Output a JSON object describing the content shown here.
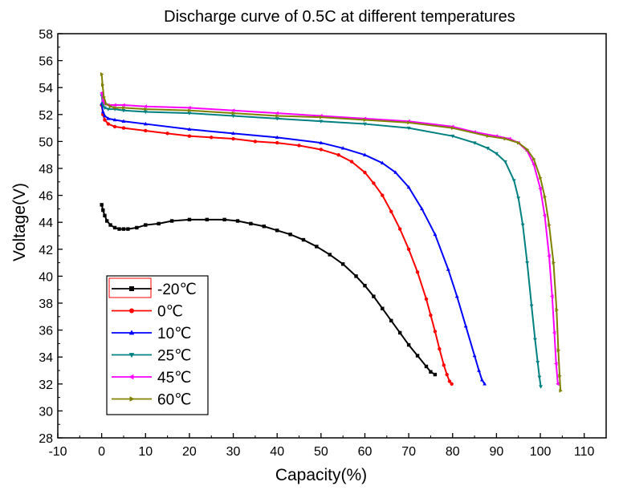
{
  "chart_data": {
    "type": "line",
    "title": "Discharge curve of 0.5C at different temperatures",
    "xlabel": "Capacity(%)",
    "ylabel": "Voltage(V)",
    "xlim": [
      -10,
      115
    ],
    "ylim": [
      28,
      58
    ],
    "xticks": [
      -10,
      0,
      10,
      20,
      30,
      40,
      50,
      60,
      70,
      80,
      90,
      100,
      110
    ],
    "yticks": [
      28,
      30,
      32,
      34,
      36,
      38,
      40,
      42,
      44,
      46,
      48,
      50,
      52,
      54,
      56,
      58
    ],
    "grid": false,
    "legend_position": "bottom-left",
    "series": [
      {
        "name": "-20℃",
        "color": "#000000",
        "marker": "square",
        "x": [
          0,
          0.3,
          0.7,
          1.2,
          2,
          3,
          4,
          5,
          6,
          8,
          10,
          13,
          16,
          20,
          24,
          28,
          31,
          34,
          37,
          40,
          43,
          46,
          49,
          52,
          55,
          58,
          60,
          62,
          64,
          66,
          68,
          70,
          72,
          74,
          75,
          76
        ],
        "y": [
          45.3,
          44.9,
          44.5,
          44.1,
          43.8,
          43.6,
          43.5,
          43.5,
          43.5,
          43.6,
          43.8,
          43.9,
          44.1,
          44.2,
          44.2,
          44.2,
          44.1,
          43.9,
          43.7,
          43.4,
          43.1,
          42.7,
          42.2,
          41.6,
          40.9,
          40.0,
          39.3,
          38.5,
          37.6,
          36.7,
          35.8,
          34.9,
          34.1,
          33.3,
          32.9,
          32.7
        ]
      },
      {
        "name": "0℃",
        "color": "#ff0000",
        "marker": "circle",
        "x": [
          0,
          0.3,
          0.7,
          1.5,
          3,
          5,
          10,
          15,
          20,
          25,
          30,
          35,
          40,
          45,
          50,
          54,
          57,
          60,
          62,
          64,
          66,
          68,
          70,
          72,
          74,
          75,
          76,
          77,
          78,
          78.7,
          79.3,
          79.8
        ],
        "y": [
          52.7,
          52.0,
          51.6,
          51.3,
          51.1,
          51.0,
          50.8,
          50.6,
          50.4,
          50.3,
          50.2,
          50.0,
          49.9,
          49.7,
          49.4,
          49.0,
          48.5,
          47.7,
          46.9,
          46.0,
          44.8,
          43.5,
          42.0,
          40.3,
          38.3,
          37.1,
          35.9,
          34.6,
          33.4,
          32.7,
          32.2,
          32.0
        ]
      },
      {
        "name": "10℃",
        "color": "#0000ff",
        "marker": "triangle-up",
        "x": [
          0,
          0.3,
          0.7,
          1.5,
          3,
          5,
          10,
          20,
          30,
          40,
          50,
          55,
          60,
          64,
          67,
          70,
          73,
          76,
          79,
          81,
          83,
          85,
          86,
          86.7,
          87.3
        ],
        "y": [
          52.8,
          52.2,
          51.9,
          51.7,
          51.6,
          51.5,
          51.3,
          50.9,
          50.6,
          50.3,
          49.9,
          49.5,
          49.0,
          48.4,
          47.7,
          46.6,
          45.0,
          43.1,
          40.5,
          38.5,
          36.3,
          34.1,
          33.0,
          32.3,
          32.0
        ]
      },
      {
        "name": "25℃",
        "color": "#008080",
        "marker": "triangle-down",
        "x": [
          0,
          0.3,
          0.7,
          1.5,
          3,
          5,
          10,
          20,
          30,
          40,
          50,
          60,
          70,
          80,
          85,
          88,
          90,
          92,
          94,
          95,
          96,
          97,
          98,
          98.8,
          99.4,
          99.8,
          100.1
        ],
        "y": [
          53.4,
          52.7,
          52.5,
          52.4,
          52.4,
          52.3,
          52.2,
          52.1,
          51.9,
          51.7,
          51.5,
          51.3,
          51.0,
          50.4,
          49.9,
          49.5,
          49.1,
          48.5,
          47.1,
          45.8,
          43.8,
          41.0,
          37.8,
          35.3,
          33.6,
          32.5,
          31.8
        ]
      },
      {
        "name": "45℃",
        "color": "#ff00ff",
        "marker": "triangle-left",
        "x": [
          0,
          0.3,
          0.7,
          1.5,
          3,
          5,
          10,
          20,
          30,
          40,
          50,
          60,
          70,
          80,
          85,
          90,
          93,
          95,
          97,
          98.5,
          100,
          101,
          102,
          102.7,
          103.2,
          103.6,
          104
        ],
        "y": [
          53.6,
          53.0,
          52.8,
          52.7,
          52.7,
          52.7,
          52.6,
          52.5,
          52.3,
          52.1,
          51.9,
          51.7,
          51.5,
          51.1,
          50.7,
          50.4,
          50.2,
          49.9,
          49.3,
          48.3,
          46.5,
          44.5,
          41.5,
          38.5,
          35.8,
          33.5,
          32.0
        ]
      },
      {
        "name": "60℃",
        "color": "#808000",
        "marker": "triangle-right",
        "x": [
          0,
          0.2,
          0.5,
          1,
          2,
          3,
          5,
          10,
          20,
          30,
          40,
          50,
          60,
          70,
          80,
          88,
          92,
          95,
          97,
          98.5,
          100,
          101,
          102,
          103,
          103.7,
          104.1,
          104.4,
          104.6
        ],
        "y": [
          55.0,
          54.2,
          53.3,
          52.8,
          52.6,
          52.5,
          52.5,
          52.4,
          52.3,
          52.1,
          51.9,
          51.8,
          51.6,
          51.4,
          51.0,
          50.4,
          50.2,
          49.9,
          49.4,
          48.7,
          47.3,
          45.9,
          43.8,
          41.0,
          37.5,
          34.5,
          32.6,
          31.5
        ]
      }
    ]
  }
}
